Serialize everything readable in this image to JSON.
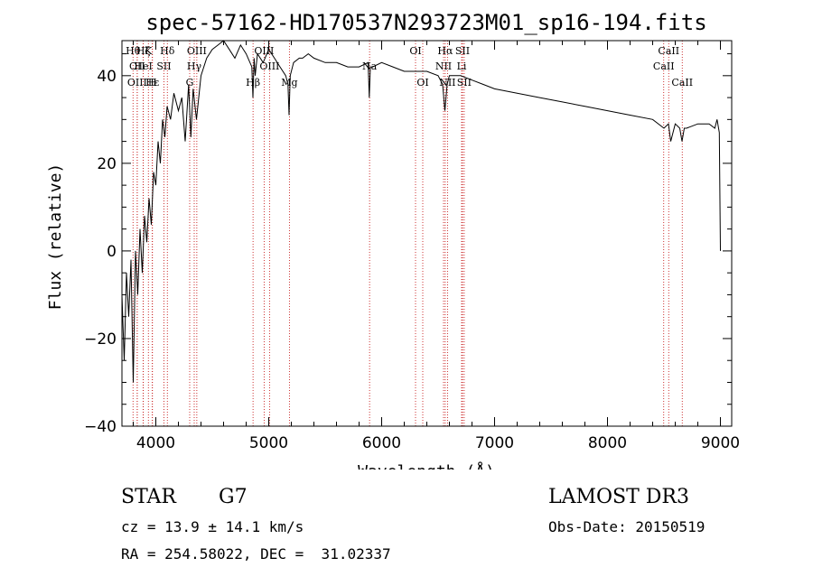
{
  "chart_data": {
    "type": "line",
    "title": "spec-57162-HD170537N293723M01_sp16-194.fits",
    "xlabel": "Wavelength (Å)",
    "ylabel": "Flux (relative)",
    "xlim": [
      3700,
      9100
    ],
    "ylim": [
      -40,
      48
    ],
    "x_ticks": [
      4000,
      5000,
      6000,
      7000,
      8000,
      9000
    ],
    "x_tick_labels": [
      "4000",
      "5000",
      "6000",
      "7000",
      "8000",
      "9000"
    ],
    "y_ticks": [
      -40,
      -20,
      0,
      20,
      40
    ],
    "y_tick_labels": [
      "−40",
      "−20",
      "0",
      "20",
      "40"
    ],
    "series": [
      {
        "name": "spectrum",
        "color": "#000000",
        "x": [
          3700,
          3720,
          3740,
          3760,
          3780,
          3800,
          3820,
          3840,
          3860,
          3880,
          3900,
          3920,
          3940,
          3960,
          3980,
          4000,
          4020,
          4040,
          4060,
          4080,
          4100,
          4130,
          4160,
          4200,
          4230,
          4260,
          4290,
          4310,
          4330,
          4360,
          4400,
          4450,
          4500,
          4550,
          4600,
          4650,
          4700,
          4750,
          4800,
          4850,
          4860,
          4870,
          4880,
          4900,
          4950,
          5000,
          5050,
          5100,
          5150,
          5170,
          5180,
          5190,
          5220,
          5270,
          5300,
          5350,
          5400,
          5500,
          5600,
          5700,
          5800,
          5880,
          5890,
          5900,
          5920,
          6000,
          6100,
          6200,
          6300,
          6400,
          6500,
          6540,
          6560,
          6580,
          6600,
          6700,
          6800,
          6900,
          7000,
          7200,
          7400,
          7600,
          7800,
          8000,
          8200,
          8400,
          8500,
          8540,
          8560,
          8600,
          8640,
          8660,
          8680,
          8700,
          8800,
          8900,
          8950,
          8970,
          8990,
          9000
        ],
        "y": [
          -10,
          -25,
          -5,
          -15,
          -2,
          -30,
          0,
          -10,
          5,
          -5,
          8,
          2,
          12,
          6,
          18,
          15,
          25,
          20,
          30,
          26,
          33,
          30,
          36,
          32,
          35,
          25,
          38,
          26,
          37,
          30,
          40,
          44,
          46,
          47,
          48,
          46,
          44,
          47,
          45,
          42,
          35,
          44,
          40,
          45,
          43,
          46,
          44,
          42,
          40,
          38,
          31,
          40,
          43,
          44,
          44,
          45,
          44,
          43,
          43,
          42,
          42,
          43,
          35,
          42,
          42,
          43,
          42,
          41,
          41,
          41,
          40,
          38,
          32,
          38,
          40,
          40,
          39,
          38,
          37,
          36,
          35,
          34,
          33,
          32,
          31,
          30,
          28,
          29,
          25,
          29,
          28,
          25,
          28,
          28,
          29,
          29,
          28,
          30,
          27,
          0
        ]
      }
    ],
    "spectral_lines": [
      {
        "wavelength": 3798,
        "label": "Hθ",
        "row": 1
      },
      {
        "wavelength": 3835,
        "label": "OII",
        "row": 2
      },
      {
        "wavelength": 3835,
        "label": "OIII",
        "row": 3
      },
      {
        "wavelength": 3889,
        "label": "Hζ",
        "row": 1
      },
      {
        "wavelength": 3934,
        "label": "K",
        "row": 1
      },
      {
        "wavelength": 3889,
        "label": "HeI",
        "row": 2
      },
      {
        "wavelength": 3970,
        "label": "Hε",
        "row": 3
      },
      {
        "wavelength": 3969,
        "label": "H",
        "row": 3
      },
      {
        "wavelength": 4072,
        "label": "SII",
        "row": 2
      },
      {
        "wavelength": 4102,
        "label": "Hδ",
        "row": 1
      },
      {
        "wavelength": 4300,
        "label": "G",
        "row": 3
      },
      {
        "wavelength": 4340,
        "label": "Hγ",
        "row": 2
      },
      {
        "wavelength": 4363,
        "label": "OIII",
        "row": 1
      },
      {
        "wavelength": 4861,
        "label": "Hβ",
        "row": 3
      },
      {
        "wavelength": 4959,
        "label": "OIII",
        "row": 1
      },
      {
        "wavelength": 5007,
        "label": "OIII",
        "row": 2
      },
      {
        "wavelength": 5183,
        "label": "Mg",
        "row": 3
      },
      {
        "wavelength": 5893,
        "label": "Na",
        "row": 2
      },
      {
        "wavelength": 6300,
        "label": "OI",
        "row": 1
      },
      {
        "wavelength": 6364,
        "label": "OI",
        "row": 3
      },
      {
        "wavelength": 6548,
        "label": "NII",
        "row": 2
      },
      {
        "wavelength": 6563,
        "label": "Hα",
        "row": 1
      },
      {
        "wavelength": 6583,
        "label": "NII",
        "row": 3
      },
      {
        "wavelength": 6708,
        "label": "Li",
        "row": 2
      },
      {
        "wavelength": 6716,
        "label": "SII",
        "row": 1
      },
      {
        "wavelength": 6731,
        "label": "SII",
        "row": 3
      },
      {
        "wavelength": 8498,
        "label": "CaII",
        "row": 2
      },
      {
        "wavelength": 8542,
        "label": "CaII",
        "row": 1
      },
      {
        "wavelength": 8662,
        "label": "CaII",
        "row": 3
      }
    ]
  },
  "info": {
    "object_class": "STAR",
    "subclass": "G7",
    "survey": "LAMOST DR3",
    "redshift": "cz = 13.9 ± 14.1 km/s",
    "obs_date": "Obs-Date: 20150519",
    "coords": "RA = 254.58022, DEC =  31.02337"
  },
  "colors": {
    "spectrum": "#000000",
    "line_markers": "#c00000",
    "axes": "#000000"
  }
}
